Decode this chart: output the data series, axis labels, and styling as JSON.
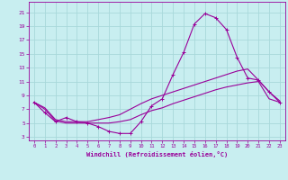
{
  "xlabel": "Windchill (Refroidissement éolien,°C)",
  "bg_color": "#c8eef0",
  "grid_color": "#a8d8da",
  "line_color": "#990099",
  "xlim": [
    -0.5,
    23.5
  ],
  "ylim": [
    2.5,
    22.5
  ],
  "yticks": [
    3,
    5,
    7,
    9,
    11,
    13,
    15,
    17,
    19,
    21
  ],
  "xticks": [
    0,
    1,
    2,
    3,
    4,
    5,
    6,
    7,
    8,
    9,
    10,
    11,
    12,
    13,
    14,
    15,
    16,
    17,
    18,
    19,
    20,
    21,
    22,
    23
  ],
  "curve1_x": [
    0,
    1,
    2,
    3,
    4,
    5,
    6,
    7,
    8,
    9,
    10,
    11,
    12,
    13,
    14,
    15,
    16,
    17,
    18,
    19,
    20,
    21,
    22,
    23
  ],
  "curve1_y": [
    8.0,
    6.5,
    5.2,
    5.8,
    5.2,
    5.0,
    4.5,
    3.8,
    3.5,
    3.5,
    5.2,
    7.5,
    8.5,
    12.0,
    15.2,
    19.3,
    20.8,
    20.2,
    18.5,
    14.5,
    11.5,
    11.2,
    9.5,
    8.0
  ],
  "curve2_x": [
    0,
    1,
    2,
    3,
    4,
    5,
    6,
    7,
    8,
    9,
    10,
    11,
    12,
    13,
    14,
    15,
    16,
    17,
    18,
    19,
    20,
    21,
    22,
    23
  ],
  "curve2_y": [
    8.0,
    7.2,
    5.5,
    5.2,
    5.2,
    5.2,
    5.5,
    5.8,
    6.2,
    7.0,
    7.8,
    8.5,
    9.0,
    9.5,
    10.0,
    10.5,
    11.0,
    11.5,
    12.0,
    12.5,
    12.8,
    11.2,
    9.5,
    8.2
  ],
  "curve3_x": [
    0,
    1,
    2,
    3,
    4,
    5,
    6,
    7,
    8,
    9,
    10,
    11,
    12,
    13,
    14,
    15,
    16,
    17,
    18,
    19,
    20,
    21,
    22,
    23
  ],
  "curve3_y": [
    8.0,
    7.0,
    5.3,
    5.0,
    5.0,
    5.0,
    5.0,
    5.0,
    5.2,
    5.5,
    6.2,
    6.8,
    7.2,
    7.8,
    8.3,
    8.8,
    9.3,
    9.8,
    10.2,
    10.5,
    10.8,
    11.0,
    8.5,
    8.0
  ]
}
